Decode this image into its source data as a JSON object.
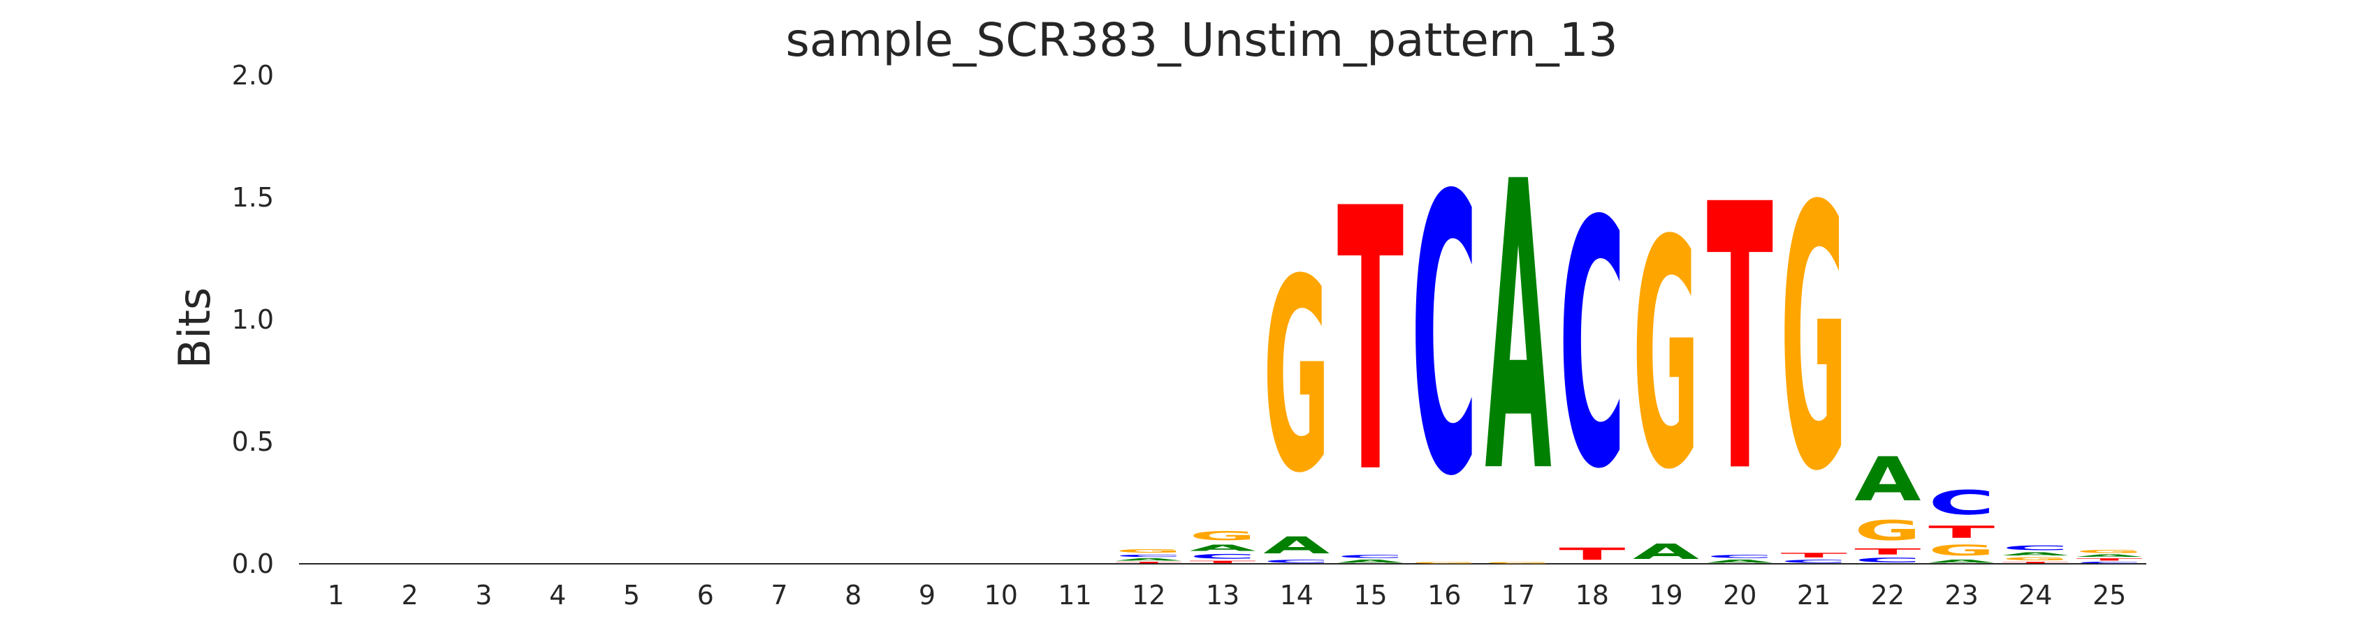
{
  "chart_data": {
    "type": "sequence-logo",
    "title": "sample_SCR383_Unstim_pattern_13",
    "xlabel": "",
    "ylabel": "Bits",
    "ylim": [
      0,
      2.0
    ],
    "yticks": [
      "0.0",
      "0.5",
      "1.0",
      "1.5",
      "2.0"
    ],
    "categories": [
      "1",
      "2",
      "3",
      "4",
      "5",
      "6",
      "7",
      "8",
      "9",
      "10",
      "11",
      "12",
      "13",
      "14",
      "15",
      "16",
      "17",
      "18",
      "19",
      "20",
      "21",
      "22",
      "23",
      "24",
      "25"
    ],
    "colors": {
      "A": "#008000",
      "C": "#0000ff",
      "G": "#ffa500",
      "T": "#ff0000"
    },
    "grid": false,
    "positions": [
      {
        "pos": "1",
        "stack": []
      },
      {
        "pos": "2",
        "stack": []
      },
      {
        "pos": "3",
        "stack": []
      },
      {
        "pos": "4",
        "stack": []
      },
      {
        "pos": "5",
        "stack": []
      },
      {
        "pos": "6",
        "stack": []
      },
      {
        "pos": "7",
        "stack": []
      },
      {
        "pos": "8",
        "stack": []
      },
      {
        "pos": "9",
        "stack": []
      },
      {
        "pos": "10",
        "stack": []
      },
      {
        "pos": "11",
        "stack": []
      },
      {
        "pos": "12",
        "stack": [
          {
            "base": "T",
            "bits": 0.01
          },
          {
            "base": "A",
            "bits": 0.015
          },
          {
            "base": "C",
            "bits": 0.015
          },
          {
            "base": "G",
            "bits": 0.025
          }
        ]
      },
      {
        "pos": "13",
        "stack": [
          {
            "base": "T",
            "bits": 0.015
          },
          {
            "base": "C",
            "bits": 0.03
          },
          {
            "base": "A",
            "bits": 0.04
          },
          {
            "base": "G",
            "bits": 0.06
          }
        ]
      },
      {
        "pos": "14",
        "stack": [
          {
            "base": "C",
            "bits": 0.02
          },
          {
            "base": "A",
            "bits": 0.11
          },
          {
            "base": "G",
            "bits": 1.27
          }
        ]
      },
      {
        "pos": "15",
        "stack": [
          {
            "base": "A",
            "bits": 0.02
          },
          {
            "base": "C",
            "bits": 0.02
          },
          {
            "base": "T",
            "bits": 1.73
          }
        ]
      },
      {
        "pos": "16",
        "stack": [
          {
            "base": "G",
            "bits": 0.01
          },
          {
            "base": "C",
            "bits": 1.83
          }
        ]
      },
      {
        "pos": "17",
        "stack": [
          {
            "base": "G",
            "bits": 0.01
          },
          {
            "base": "A",
            "bits": 1.9
          }
        ]
      },
      {
        "pos": "18",
        "stack": [
          {
            "base": "T",
            "bits": 0.08
          },
          {
            "base": "C",
            "bits": 1.62
          }
        ]
      },
      {
        "pos": "19",
        "stack": [
          {
            "base": "A",
            "bits": 0.1
          },
          {
            "base": "G",
            "bits": 1.5
          }
        ]
      },
      {
        "pos": "20",
        "stack": [
          {
            "base": "A",
            "bits": 0.02
          },
          {
            "base": "C",
            "bits": 0.02
          },
          {
            "base": "T",
            "bits": 1.75
          }
        ]
      },
      {
        "pos": "21",
        "stack": [
          {
            "base": "C",
            "bits": 0.02
          },
          {
            "base": "T",
            "bits": 0.03
          },
          {
            "base": "G",
            "bits": 1.73
          }
        ]
      },
      {
        "pos": "22",
        "stack": [
          {
            "base": "C",
            "bits": 0.03
          },
          {
            "base": "T",
            "bits": 0.04
          },
          {
            "base": "G",
            "bits": 0.13
          },
          {
            "base": "A",
            "bits": 0.29
          }
        ]
      },
      {
        "pos": "23",
        "stack": [
          {
            "base": "A",
            "bits": 0.02
          },
          {
            "base": "G",
            "bits": 0.07
          },
          {
            "base": "T",
            "bits": 0.08
          },
          {
            "base": "C",
            "bits": 0.16
          }
        ]
      },
      {
        "pos": "24",
        "stack": [
          {
            "base": "T",
            "bits": 0.01
          },
          {
            "base": "G",
            "bits": 0.02
          },
          {
            "base": "A",
            "bits": 0.02
          },
          {
            "base": "C",
            "bits": 0.03
          }
        ]
      },
      {
        "pos": "25",
        "stack": [
          {
            "base": "C",
            "bits": 0.01
          },
          {
            "base": "T",
            "bits": 0.015
          },
          {
            "base": "A",
            "bits": 0.015
          },
          {
            "base": "G",
            "bits": 0.02
          }
        ]
      }
    ]
  }
}
